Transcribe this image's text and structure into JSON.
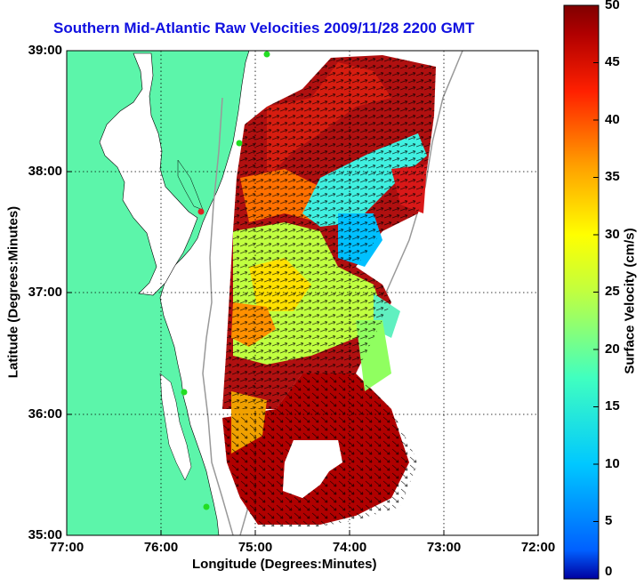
{
  "title": "Southern Mid-Atlantic Raw Velocities 2009/11/28 2200 GMT",
  "axes": {
    "xlabel": "Longitude (Degrees:Minutes)",
    "ylabel": "Latitude (Degrees:Minutes)",
    "xticks": [
      "77:00",
      "76:00",
      "75:00",
      "74:00",
      "73:00",
      "72:00"
    ],
    "yticks": [
      "39:00",
      "38:00",
      "37:00",
      "36:00",
      "35:00"
    ],
    "xlim": [
      -77,
      -72
    ],
    "ylim": [
      35,
      39
    ]
  },
  "colorbar": {
    "label": "Surface Velocity (cm/s)",
    "ticks": [
      "50",
      "45",
      "40",
      "35",
      "30",
      "25",
      "20",
      "15",
      "10",
      "5",
      "0"
    ],
    "range": [
      0,
      50
    ],
    "colormap": "jet"
  },
  "colors": {
    "land": "#5cf5aa",
    "title": "#1010e0",
    "station": "#22dd22",
    "station_alt": "#dd2222"
  }
}
